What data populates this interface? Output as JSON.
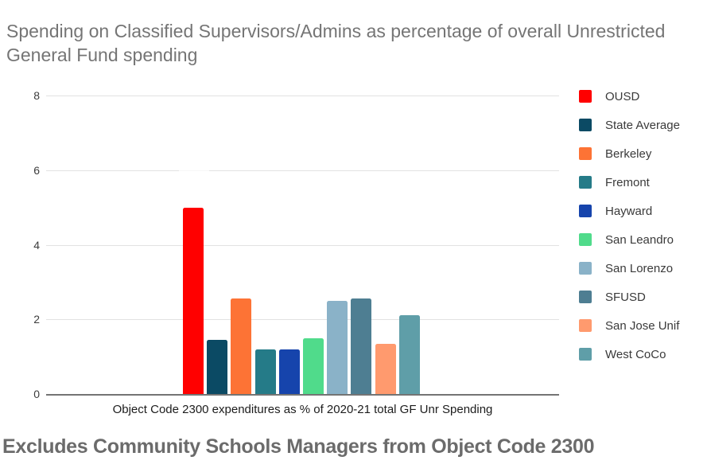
{
  "title": "Spending on Classified Supervisors/Admins as percentage of overall Unrestricted General Fund spending",
  "footer_note": "Excludes Community Schools Managers from Object Code 2300",
  "colors": {
    "title": "#757575",
    "tick_label": "#3c3c3c",
    "axis_label": "#1c1c1c",
    "gridline": "#e2e2e2",
    "baseline": "#747474",
    "legend_text": "#3a3a3a",
    "footer": "#6b6b6b",
    "background": "#ffffff"
  },
  "chart_data": {
    "type": "bar",
    "title": "Spending on Classified Supervisors/Admins as percentage of overall Unrestricted General Fund spending",
    "xlabel": "Object Code 2300 expenditures as % of 2020-21 total GF Unr Spending",
    "ylabel": "",
    "ylim": [
      0,
      8
    ],
    "yticks": [
      0,
      2,
      4,
      6,
      8
    ],
    "grid": true,
    "legend_position": "right",
    "categories": [
      "Object Code 2300 expenditures as % of 2020-21 total GF Unr Spending"
    ],
    "series": [
      {
        "name": "OUSD",
        "color": "#ff0000",
        "values": [
          5.0
        ]
      },
      {
        "name": "State Average",
        "color": "#0b4a64",
        "values": [
          1.45
        ]
      },
      {
        "name": "Berkeley",
        "color": "#fd7335",
        "values": [
          2.55
        ]
      },
      {
        "name": "Fremont",
        "color": "#257b88",
        "values": [
          1.2
        ]
      },
      {
        "name": "Hayward",
        "color": "#1644ac",
        "values": [
          1.2
        ]
      },
      {
        "name": "San Leandro",
        "color": "#50db8b",
        "values": [
          1.5
        ]
      },
      {
        "name": "San Lorenzo",
        "color": "#8ab2c8",
        "values": [
          2.5
        ]
      },
      {
        "name": "SFUSD",
        "color": "#4e7e92",
        "values": [
          2.57
        ]
      },
      {
        "name": "San Jose Unif",
        "color": "#ff9a6e",
        "values": [
          1.35
        ]
      },
      {
        "name": "West CoCo",
        "color": "#5f9ea8",
        "values": [
          2.12
        ]
      }
    ]
  }
}
